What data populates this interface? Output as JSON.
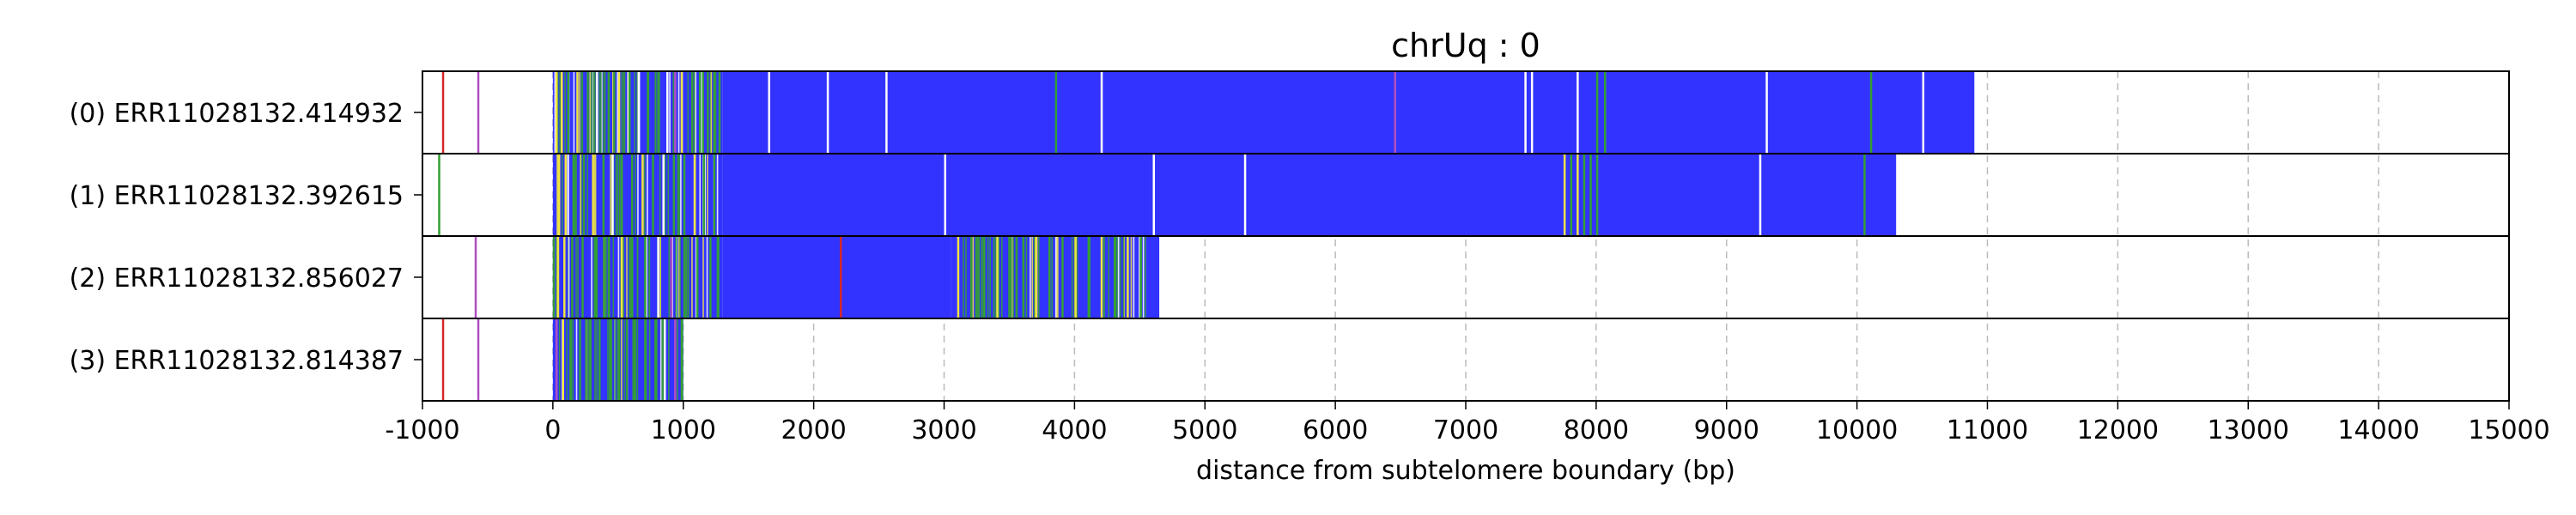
{
  "chart_data": {
    "type": "heatmap",
    "title": "chrUq : 0",
    "xlabel": "distance from subtelomere boundary (bp)",
    "xlim": [
      -1000,
      15000
    ],
    "xticks": [
      "-1000",
      "0",
      "1000",
      "2000",
      "3000",
      "4000",
      "5000",
      "6000",
      "7000",
      "8000",
      "9000",
      "10000",
      "11000",
      "12000",
      "13000",
      "14000",
      "15000"
    ],
    "xtick_values": [
      -1000,
      0,
      1000,
      2000,
      3000,
      4000,
      5000,
      6000,
      7000,
      8000,
      9000,
      10000,
      11000,
      12000,
      13000,
      14000,
      15000
    ],
    "grid": "vertical dashed",
    "colors": {
      "blue": "#3333ff",
      "green": "#33a033",
      "yellow": "#f0e442",
      "red": "#d62728",
      "purple": "#b050c0",
      "white": "#ffffff",
      "grid": "#bbbbbb"
    },
    "reads": [
      {
        "label": "(0) ERR11028132.414932",
        "end": 10900,
        "segments": [
          {
            "start": 0,
            "end": 1300,
            "color": "mixed"
          },
          {
            "start": 1300,
            "end": 10900,
            "color": "blue"
          }
        ],
        "marks": [
          {
            "x": -850,
            "color": "red"
          },
          {
            "x": -580,
            "color": "purple"
          },
          {
            "x": 20,
            "color": "yellow"
          },
          {
            "x": 60,
            "color": "yellow"
          },
          {
            "x": 110,
            "color": "green"
          },
          {
            "x": 180,
            "color": "yellow"
          },
          {
            "x": 260,
            "color": "green"
          },
          {
            "x": 330,
            "color": "white"
          },
          {
            "x": 420,
            "color": "green"
          },
          {
            "x": 500,
            "color": "yellow"
          },
          {
            "x": 580,
            "color": "green"
          },
          {
            "x": 650,
            "color": "white"
          },
          {
            "x": 720,
            "color": "green"
          },
          {
            "x": 800,
            "color": "green"
          },
          {
            "x": 870,
            "color": "white"
          },
          {
            "x": 930,
            "color": "purple"
          },
          {
            "x": 980,
            "color": "yellow"
          },
          {
            "x": 1060,
            "color": "green"
          },
          {
            "x": 1120,
            "color": "green"
          },
          {
            "x": 1180,
            "color": "green"
          },
          {
            "x": 1230,
            "color": "green"
          },
          {
            "x": 1270,
            "color": "green"
          },
          {
            "x": 1650,
            "color": "white"
          },
          {
            "x": 2100,
            "color": "white"
          },
          {
            "x": 2550,
            "color": "white"
          },
          {
            "x": 3850,
            "color": "green"
          },
          {
            "x": 4200,
            "color": "white"
          },
          {
            "x": 6450,
            "color": "purple"
          },
          {
            "x": 7450,
            "color": "white"
          },
          {
            "x": 7500,
            "color": "white"
          },
          {
            "x": 7850,
            "color": "white"
          },
          {
            "x": 8000,
            "color": "green"
          },
          {
            "x": 8060,
            "color": "green"
          },
          {
            "x": 9300,
            "color": "white"
          },
          {
            "x": 10100,
            "color": "green"
          },
          {
            "x": 10500,
            "color": "white"
          }
        ]
      },
      {
        "label": "(1) ERR11028132.392615",
        "end": 10300,
        "segments": [
          {
            "start": 0,
            "end": 1300,
            "color": "mixed"
          },
          {
            "start": 1300,
            "end": 10300,
            "color": "blue"
          }
        ],
        "marks": [
          {
            "x": -880,
            "color": "green"
          },
          {
            "x": 40,
            "color": "yellow"
          },
          {
            "x": 90,
            "color": "yellow"
          },
          {
            "x": 150,
            "color": "green"
          },
          {
            "x": 230,
            "color": "green"
          },
          {
            "x": 300,
            "color": "yellow"
          },
          {
            "x": 380,
            "color": "green"
          },
          {
            "x": 450,
            "color": "white"
          },
          {
            "x": 520,
            "color": "green"
          },
          {
            "x": 600,
            "color": "green"
          },
          {
            "x": 680,
            "color": "yellow"
          },
          {
            "x": 760,
            "color": "green"
          },
          {
            "x": 840,
            "color": "white"
          },
          {
            "x": 920,
            "color": "green"
          },
          {
            "x": 1000,
            "color": "green"
          },
          {
            "x": 1080,
            "color": "yellow"
          },
          {
            "x": 1150,
            "color": "green"
          },
          {
            "x": 1230,
            "color": "green"
          },
          {
            "x": 3000,
            "color": "white"
          },
          {
            "x": 4600,
            "color": "white"
          },
          {
            "x": 5300,
            "color": "white"
          },
          {
            "x": 7750,
            "color": "yellow"
          },
          {
            "x": 7800,
            "color": "green"
          },
          {
            "x": 7850,
            "color": "yellow"
          },
          {
            "x": 7900,
            "color": "green"
          },
          {
            "x": 7950,
            "color": "green"
          },
          {
            "x": 8000,
            "color": "green"
          },
          {
            "x": 9250,
            "color": "white"
          },
          {
            "x": 10050,
            "color": "green"
          }
        ]
      },
      {
        "label": "(2) ERR11028132.856027",
        "end": 4650,
        "segments": [
          {
            "start": 0,
            "end": 1300,
            "color": "mixed"
          },
          {
            "start": 1300,
            "end": 3050,
            "color": "blue"
          },
          {
            "start": 3050,
            "end": 4650,
            "color": "mixed"
          }
        ],
        "marks": [
          {
            "x": -600,
            "color": "purple"
          },
          {
            "x": 30,
            "color": "yellow"
          },
          {
            "x": 80,
            "color": "yellow"
          },
          {
            "x": 140,
            "color": "green"
          },
          {
            "x": 220,
            "color": "green"
          },
          {
            "x": 320,
            "color": "green"
          },
          {
            "x": 420,
            "color": "green"
          },
          {
            "x": 520,
            "color": "yellow"
          },
          {
            "x": 600,
            "color": "green"
          },
          {
            "x": 700,
            "color": "green"
          },
          {
            "x": 800,
            "color": "white"
          },
          {
            "x": 900,
            "color": "purple"
          },
          {
            "x": 1000,
            "color": "green"
          },
          {
            "x": 1100,
            "color": "green"
          },
          {
            "x": 1200,
            "color": "green"
          },
          {
            "x": 1260,
            "color": "green"
          },
          {
            "x": 2200,
            "color": "red"
          },
          {
            "x": 3100,
            "color": "yellow"
          },
          {
            "x": 3200,
            "color": "green"
          },
          {
            "x": 3300,
            "color": "green"
          },
          {
            "x": 3400,
            "color": "yellow"
          },
          {
            "x": 3500,
            "color": "green"
          },
          {
            "x": 3600,
            "color": "green"
          },
          {
            "x": 3700,
            "color": "yellow"
          },
          {
            "x": 3800,
            "color": "green"
          },
          {
            "x": 3900,
            "color": "green"
          },
          {
            "x": 4000,
            "color": "yellow"
          },
          {
            "x": 4100,
            "color": "green"
          },
          {
            "x": 4200,
            "color": "yellow"
          },
          {
            "x": 4300,
            "color": "green"
          },
          {
            "x": 4400,
            "color": "yellow"
          },
          {
            "x": 4500,
            "color": "green"
          }
        ]
      },
      {
        "label": "(3) ERR11028132.814387",
        "end": 1000,
        "segments": [
          {
            "start": 0,
            "end": 1000,
            "color": "mixed"
          }
        ],
        "marks": [
          {
            "x": -850,
            "color": "red"
          },
          {
            "x": -580,
            "color": "purple"
          },
          {
            "x": 20,
            "color": "purple"
          },
          {
            "x": 70,
            "color": "yellow"
          },
          {
            "x": 130,
            "color": "green"
          },
          {
            "x": 200,
            "color": "green"
          },
          {
            "x": 280,
            "color": "green"
          },
          {
            "x": 350,
            "color": "green"
          },
          {
            "x": 430,
            "color": "green"
          },
          {
            "x": 500,
            "color": "green"
          },
          {
            "x": 560,
            "color": "green"
          },
          {
            "x": 620,
            "color": "green"
          },
          {
            "x": 700,
            "color": "green"
          },
          {
            "x": 780,
            "color": "green"
          },
          {
            "x": 850,
            "color": "white"
          },
          {
            "x": 930,
            "color": "purple"
          },
          {
            "x": 980,
            "color": "green"
          }
        ]
      }
    ]
  }
}
